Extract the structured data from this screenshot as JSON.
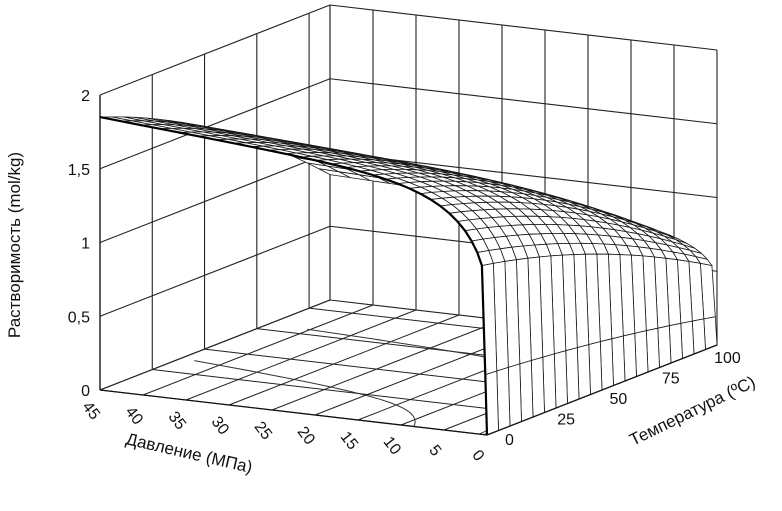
{
  "chart_data": {
    "type": "surface",
    "title": "",
    "zlabel": "Растворимость (mol/kg)",
    "xlabel": "Давление (МПа)",
    "ylabel": "Температура (ºC)",
    "z_ticks": [
      "0",
      "0,5",
      "1",
      "1,5",
      "2"
    ],
    "x_ticks": [
      "45",
      "40",
      "35",
      "30",
      "25",
      "20",
      "15",
      "10",
      "5",
      "0"
    ],
    "y_ticks": [
      "0",
      "25",
      "50",
      "75",
      "100"
    ],
    "zlim": [
      0,
      2
    ],
    "xlim": [
      0,
      45
    ],
    "ylim": [
      0,
      110
    ],
    "grid": true,
    "surface_samples": {
      "pressure_MPa": [
        45,
        30,
        15,
        10,
        5,
        0
      ],
      "temperature_C": [
        0,
        25,
        50,
        75,
        100
      ],
      "solubility_mol_per_kg": [
        [
          1.85,
          1.55,
          1.35,
          1.2,
          1.1
        ],
        [
          1.65,
          1.45,
          1.3,
          1.15,
          1.05
        ],
        [
          1.45,
          1.3,
          1.2,
          1.05,
          0.95
        ],
        [
          1.3,
          1.2,
          1.05,
          0.95,
          0.8
        ],
        [
          1.0,
          0.85,
          0.7,
          0.55,
          0.45
        ],
        [
          0.0,
          0.0,
          0.0,
          0.0,
          0.0
        ]
      ]
    }
  }
}
